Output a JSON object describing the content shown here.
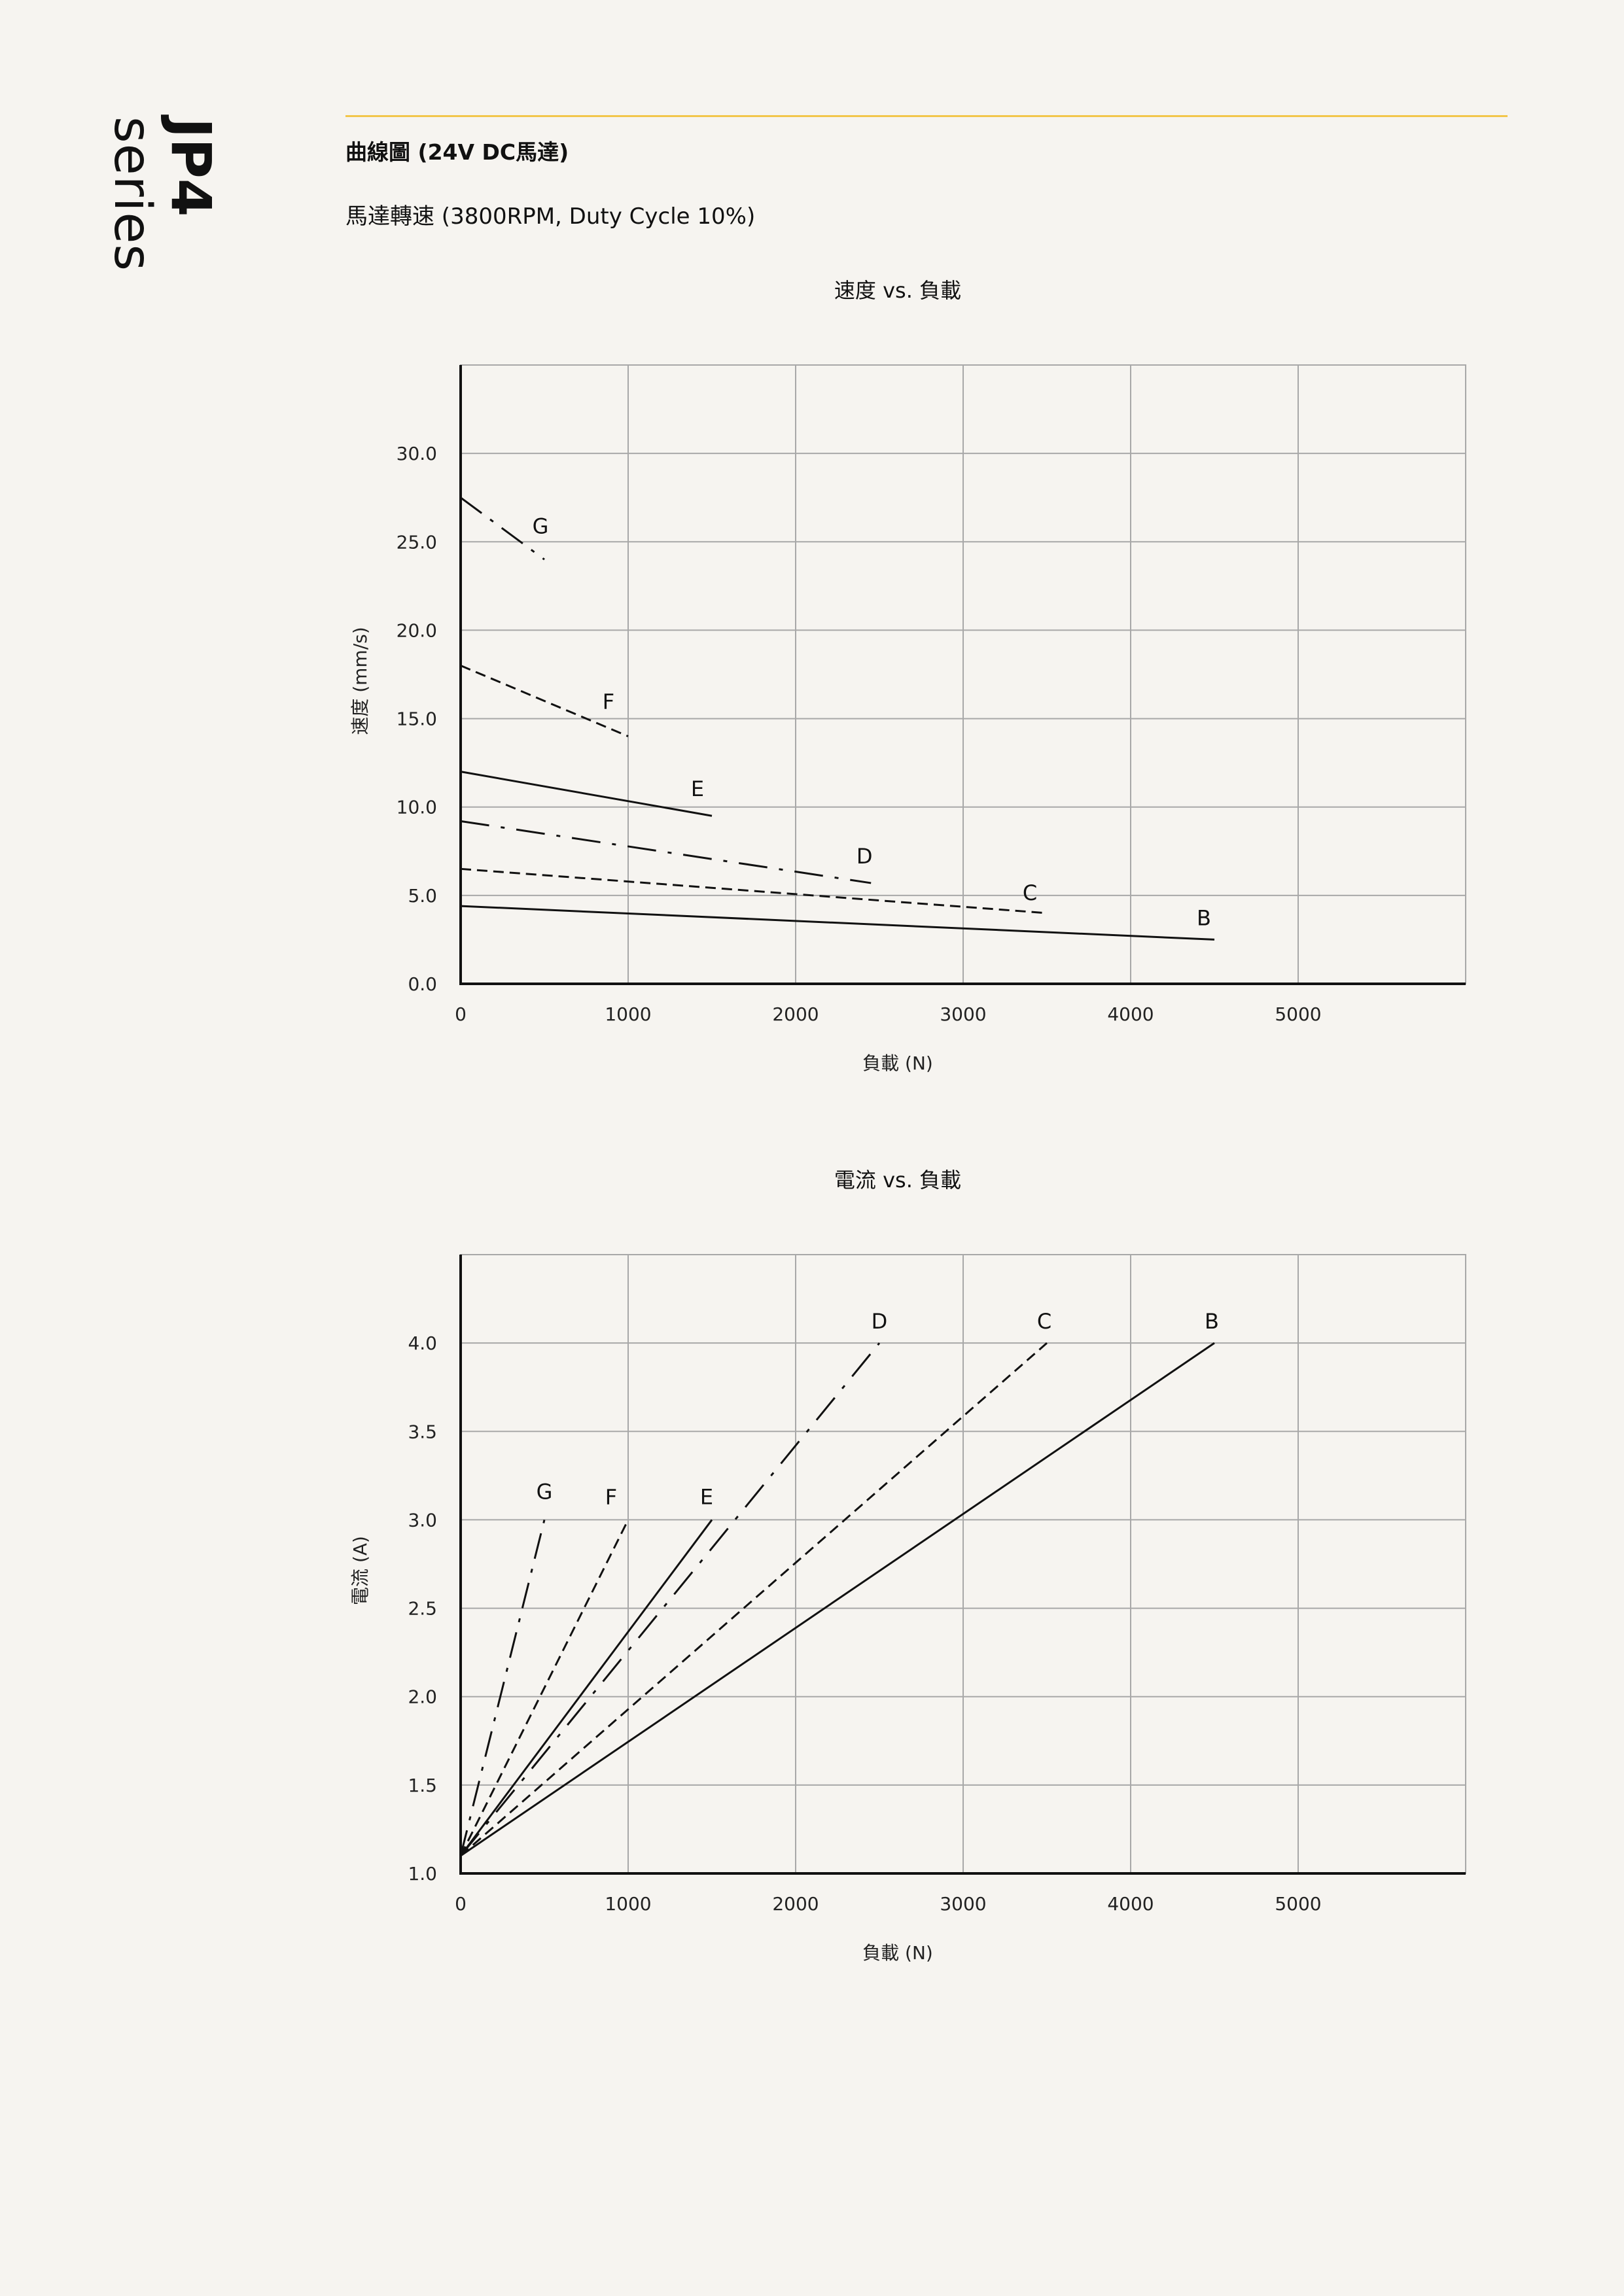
{
  "brand": {
    "model": "JP4",
    "series": "series",
    "accent_color": "#f2c64a"
  },
  "heading": "曲線圖 (24V DC馬達)",
  "subheading": "馬達轉速 (3800RPM, Duty Cycle 10%)",
  "chart_data": [
    {
      "type": "line",
      "title": "速度 vs. 負載",
      "xlabel": "負載 (N)",
      "ylabel": "速度 (mm/s)",
      "xlim": [
        0,
        6000
      ],
      "ylim": [
        0,
        35
      ],
      "xticks": [
        0,
        1000,
        2000,
        3000,
        4000,
        5000
      ],
      "xtick_labels": [
        "0",
        "1000",
        "2000",
        "3000",
        "4000",
        "5000"
      ],
      "yticks": [
        0,
        5,
        10,
        15,
        20,
        25,
        30
      ],
      "ytick_labels": [
        "0.0",
        "5.0",
        "10.0",
        "15.0",
        "20.0",
        "25.0",
        "30.0"
      ],
      "grid": true,
      "series": [
        {
          "name": "G",
          "dash": "longshort",
          "x": [
            0,
            500
          ],
          "y": [
            27.5,
            24.0
          ]
        },
        {
          "name": "F",
          "dash": "short",
          "x": [
            0,
            1000
          ],
          "y": [
            18.0,
            14.0
          ]
        },
        {
          "name": "E",
          "dash": "solid",
          "x": [
            0,
            1500
          ],
          "y": [
            12.0,
            9.5
          ]
        },
        {
          "name": "D",
          "dash": "dashdot",
          "x": [
            0,
            2450
          ],
          "y": [
            9.2,
            5.7
          ]
        },
        {
          "name": "C",
          "dash": "short",
          "x": [
            0,
            3500
          ],
          "y": [
            6.5,
            4.0
          ]
        },
        {
          "name": "B",
          "dash": "solid",
          "x": [
            0,
            4500
          ],
          "y": [
            4.4,
            2.5
          ]
        }
      ]
    },
    {
      "type": "line",
      "title": "電流 vs. 負載",
      "xlabel": "負載 (N)",
      "ylabel": "電流 (A)",
      "xlim": [
        0,
        6000
      ],
      "ylim": [
        1.0,
        4.5
      ],
      "xticks": [
        0,
        1000,
        2000,
        3000,
        4000,
        5000
      ],
      "xtick_labels": [
        "0",
        "1000",
        "2000",
        "3000",
        "4000",
        "5000"
      ],
      "yticks": [
        1.0,
        1.5,
        2.0,
        2.5,
        3.0,
        3.5,
        4.0
      ],
      "ytick_labels": [
        "1.0",
        "1.5",
        "2.0",
        "2.5",
        "3.0",
        "3.5",
        "4.0"
      ],
      "grid": true,
      "series": [
        {
          "name": "G",
          "dash": "longshort",
          "x": [
            0,
            500
          ],
          "y": [
            1.1,
            3.0
          ]
        },
        {
          "name": "F",
          "dash": "short",
          "x": [
            0,
            1000
          ],
          "y": [
            1.1,
            3.0
          ]
        },
        {
          "name": "E",
          "dash": "solid",
          "x": [
            0,
            1500
          ],
          "y": [
            1.1,
            3.0
          ]
        },
        {
          "name": "D",
          "dash": "dashdot",
          "x": [
            0,
            2500
          ],
          "y": [
            1.1,
            4.0
          ]
        },
        {
          "name": "C",
          "dash": "short",
          "x": [
            0,
            3500
          ],
          "y": [
            1.1,
            4.0
          ]
        },
        {
          "name": "B",
          "dash": "solid",
          "x": [
            0,
            4500
          ],
          "y": [
            1.1,
            4.0
          ]
        }
      ]
    }
  ]
}
